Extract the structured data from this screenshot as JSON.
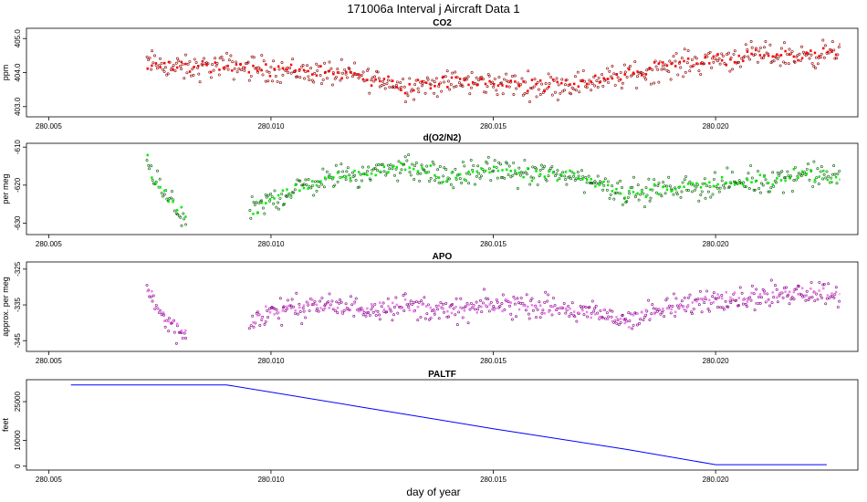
{
  "figure": {
    "title": "171006a   Interval j Aircraft Data 1",
    "xlabel": "day of year"
  },
  "chart_data": [
    {
      "id": "co2",
      "type": "scatter",
      "title": "CO2",
      "xlabel": "",
      "ylabel": "ppm",
      "xlim": [
        280.0045,
        280.0232
      ],
      "ylim": [
        402.7,
        405.3
      ],
      "x_ticks": [
        280.005,
        280.01,
        280.015,
        280.02
      ],
      "x_tick_labels": [
        "280.005",
        "280.010",
        "280.015",
        "280.020"
      ],
      "y_ticks": [
        403.0,
        404.0,
        405.0
      ],
      "y_tick_labels": [
        "403.0",
        "404.0",
        "405.0"
      ],
      "colors": {
        "points": "#8b0000",
        "segments": "#ff0000"
      },
      "x_range": [
        280.0072,
        280.0228
      ],
      "profile": [
        [
          280.0072,
          404.3
        ],
        [
          280.008,
          404.1
        ],
        [
          280.009,
          404.2
        ],
        [
          280.01,
          404.1
        ],
        [
          280.011,
          404.0
        ],
        [
          280.012,
          403.9
        ],
        [
          280.013,
          403.6
        ],
        [
          280.014,
          403.7
        ],
        [
          280.015,
          403.7
        ],
        [
          280.016,
          403.6
        ],
        [
          280.017,
          403.7
        ],
        [
          280.018,
          403.9
        ],
        [
          280.019,
          404.2
        ],
        [
          280.02,
          404.4
        ],
        [
          280.021,
          404.5
        ],
        [
          280.022,
          404.5
        ],
        [
          280.0228,
          404.6
        ]
      ],
      "noise": 0.32
    },
    {
      "id": "o2n2",
      "type": "scatter",
      "title": "d(O2/N2)",
      "xlabel": "",
      "ylabel": "per meg",
      "xlim": [
        280.0045,
        280.0232
      ],
      "ylim": [
        -633,
        -609
      ],
      "x_ticks": [
        280.005,
        280.01,
        280.015,
        280.02
      ],
      "x_tick_labels": [
        "280.005",
        "280.010",
        "280.015",
        "280.020"
      ],
      "y_ticks": [
        -630,
        -620,
        -610
      ],
      "y_tick_labels": [
        "-630",
        "-620",
        "-610"
      ],
      "colors": {
        "points": "#006400",
        "segments": "#00ee00"
      },
      "x_range": [
        280.0072,
        280.0228
      ],
      "gap": [
        280.0081,
        280.0095
      ],
      "profile": [
        [
          280.0072,
          -614
        ],
        [
          280.0076,
          -623
        ],
        [
          280.0081,
          -629
        ],
        [
          280.0095,
          -627
        ],
        [
          280.01,
          -624
        ],
        [
          280.011,
          -619
        ],
        [
          280.012,
          -617
        ],
        [
          280.013,
          -615
        ],
        [
          280.014,
          -618
        ],
        [
          280.015,
          -616
        ],
        [
          280.016,
          -617
        ],
        [
          280.017,
          -618
        ],
        [
          280.018,
          -622
        ],
        [
          280.019,
          -621
        ],
        [
          280.02,
          -620
        ],
        [
          280.021,
          -619
        ],
        [
          280.022,
          -617
        ],
        [
          280.0228,
          -618
        ]
      ],
      "noise": 2.8
    },
    {
      "id": "apo",
      "type": "scatter",
      "title": "APO",
      "xlabel": "",
      "ylabel": "approx. per meg",
      "xlim": [
        280.0045,
        280.0232
      ],
      "ylim": [
        -348,
        -323
      ],
      "x_ticks": [
        280.005,
        280.01,
        280.015,
        280.02
      ],
      "x_tick_labels": [
        "280.005",
        "280.010",
        "280.015",
        "280.020"
      ],
      "y_ticks": [
        -345,
        -335,
        -325
      ],
      "y_tick_labels": [
        "-345",
        "-335",
        "-325"
      ],
      "colors": {
        "points": "#8b008b",
        "segments": "#ee82ee"
      },
      "x_range": [
        280.0072,
        280.0228
      ],
      "gap": [
        280.0081,
        280.0095
      ],
      "profile": [
        [
          280.0072,
          -330
        ],
        [
          280.0076,
          -339
        ],
        [
          280.0081,
          -344
        ],
        [
          280.0095,
          -340
        ],
        [
          280.01,
          -337
        ],
        [
          280.011,
          -335
        ],
        [
          280.012,
          -336
        ],
        [
          280.013,
          -335
        ],
        [
          280.014,
          -337
        ],
        [
          280.015,
          -335
        ],
        [
          280.016,
          -335
        ],
        [
          280.017,
          -337
        ],
        [
          280.018,
          -339
        ],
        [
          280.019,
          -336
        ],
        [
          280.02,
          -333
        ],
        [
          280.021,
          -333
        ],
        [
          280.022,
          -331
        ],
        [
          280.0228,
          -332
        ]
      ],
      "noise": 3.0
    },
    {
      "id": "paltf",
      "type": "line",
      "title": "PALTF",
      "xlabel": "",
      "ylabel": "feet",
      "xlim": [
        280.0045,
        280.0232
      ],
      "ylim": [
        -1500,
        33500
      ],
      "x_ticks": [
        280.005,
        280.01,
        280.015,
        280.02
      ],
      "x_tick_labels": [
        "280.005",
        "280.010",
        "280.015",
        "280.020"
      ],
      "y_ticks": [
        0,
        10000,
        25000
      ],
      "y_tick_labels": [
        "0",
        "10000",
        "25000"
      ],
      "colors": {
        "line": "#0000ff"
      },
      "series": [
        {
          "x": [
            280.0055,
            280.0065,
            280.008,
            280.009,
            280.012,
            280.015,
            280.018,
            280.02,
            280.0225
          ],
          "y": [
            31500,
            31500,
            31500,
            31500,
            23000,
            14500,
            6500,
            600,
            600
          ]
        }
      ]
    }
  ]
}
